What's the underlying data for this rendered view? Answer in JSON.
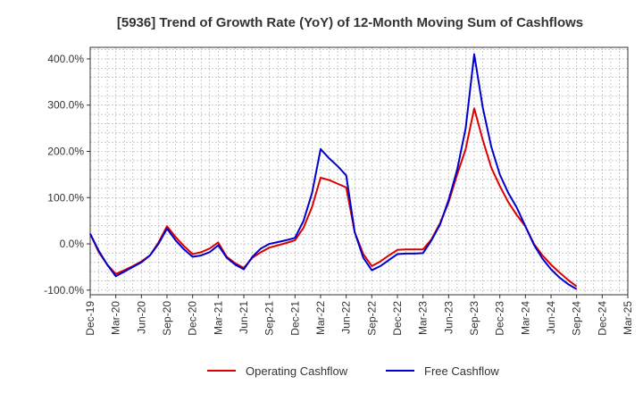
{
  "chart_data": {
    "type": "line",
    "title": "[5936]  Trend of Growth Rate (YoY) of 12-Month Moving Sum of Cashflows",
    "xlabel": "",
    "ylabel": "",
    "ylim": [
      -110,
      425
    ],
    "y_ticks": [
      -100,
      0,
      100,
      200,
      300,
      400
    ],
    "y_tick_labels": [
      "-100.0%",
      "0.0%",
      "100.0%",
      "200.0%",
      "300.0%",
      "400.0%"
    ],
    "x_range": [
      "Dec-19",
      "Mar-25"
    ],
    "x_tick_labels": [
      "Dec-19",
      "Mar-20",
      "Jun-20",
      "Sep-20",
      "Dec-20",
      "Mar-21",
      "Jun-21",
      "Sep-21",
      "Dec-21",
      "Mar-22",
      "Jun-22",
      "Sep-22",
      "Dec-22",
      "Mar-23",
      "Jun-23",
      "Sep-23",
      "Dec-23",
      "Mar-24",
      "Jun-24",
      "Sep-24",
      "Dec-24",
      "Mar-25"
    ],
    "grid": true,
    "legend_position": "bottom",
    "x": [
      "Dec-19",
      "Jan-20",
      "Feb-20",
      "Mar-20",
      "Apr-20",
      "May-20",
      "Jun-20",
      "Jul-20",
      "Aug-20",
      "Sep-20",
      "Oct-20",
      "Nov-20",
      "Dec-20",
      "Jan-21",
      "Feb-21",
      "Mar-21",
      "Apr-21",
      "May-21",
      "Jun-21",
      "Jul-21",
      "Aug-21",
      "Sep-21",
      "Oct-21",
      "Nov-21",
      "Dec-21",
      "Jan-22",
      "Feb-22",
      "Mar-22",
      "Apr-22",
      "May-22",
      "Jun-22",
      "Jul-22",
      "Aug-22",
      "Sep-22",
      "Oct-22",
      "Nov-22",
      "Dec-22",
      "Jan-23",
      "Feb-23",
      "Mar-23",
      "Apr-23",
      "May-23",
      "Jun-23",
      "Jul-23",
      "Aug-23",
      "Sep-23",
      "Oct-23",
      "Nov-23",
      "Dec-23",
      "Jan-24",
      "Feb-24",
      "Mar-24",
      "Apr-24",
      "May-24",
      "Jun-24",
      "Jul-24",
      "Aug-24",
      "Sep-24"
    ],
    "series": [
      {
        "name": "Operating Cashflow",
        "color": "#dd0000",
        "values": [
          22,
          -18,
          -45,
          -65,
          -57,
          -48,
          -38,
          -25,
          3,
          38,
          15,
          -5,
          -22,
          -18,
          -10,
          3,
          -28,
          -42,
          -52,
          -30,
          -18,
          -8,
          -3,
          2,
          8,
          35,
          80,
          143,
          138,
          130,
          122,
          25,
          -22,
          -48,
          -38,
          -25,
          -13,
          -12,
          -12,
          -12,
          10,
          45,
          90,
          150,
          205,
          293,
          225,
          165,
          125,
          90,
          62,
          38,
          0,
          -25,
          -45,
          -62,
          -78,
          -92
        ]
      },
      {
        "name": "Free Cashflow",
        "color": "#0000cc",
        "values": [
          22,
          -15,
          -45,
          -70,
          -60,
          -50,
          -40,
          -25,
          0,
          33,
          8,
          -12,
          -28,
          -25,
          -18,
          -3,
          -30,
          -45,
          -55,
          -28,
          -10,
          0,
          4,
          8,
          13,
          50,
          110,
          205,
          185,
          168,
          148,
          25,
          -30,
          -57,
          -48,
          -35,
          -22,
          -21,
          -21,
          -20,
          8,
          42,
          95,
          160,
          250,
          410,
          295,
          210,
          150,
          110,
          78,
          38,
          -2,
          -32,
          -55,
          -73,
          -87,
          -98
        ]
      }
    ]
  }
}
